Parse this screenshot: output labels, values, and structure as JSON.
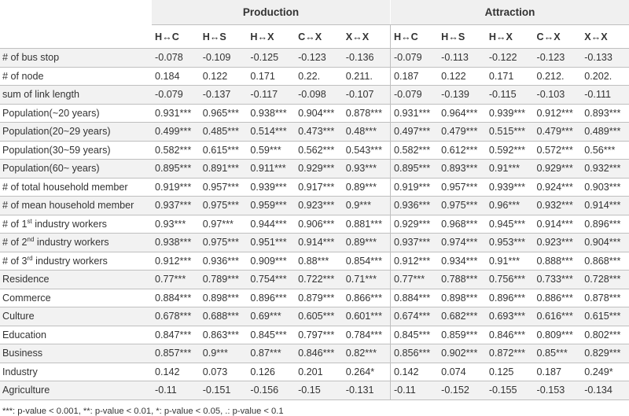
{
  "table": {
    "groups": [
      "Production",
      "Attraction"
    ],
    "sub_headers": [
      "H↔C",
      "H↔S",
      "H↔X",
      "C↔X",
      "X↔X",
      "H↔C",
      "H↔S",
      "H↔X",
      "C↔X",
      "X↔X"
    ],
    "rows": [
      {
        "label": "# of bus stop",
        "values": [
          "-0.078",
          "-0.109",
          "-0.125",
          "-0.123",
          "-0.136",
          "-0.079",
          "-0.113",
          "-0.122",
          "-0.123",
          "-0.133"
        ]
      },
      {
        "label": "# of node",
        "values": [
          "0.184",
          "0.122",
          "0.171",
          "0.22.",
          "0.211.",
          "0.187",
          "0.122",
          "0.171",
          "0.212.",
          "0.202."
        ]
      },
      {
        "label": "sum of link length",
        "values": [
          "-0.079",
          "-0.137",
          "-0.117",
          "-0.098",
          "-0.107",
          "-0.079",
          "-0.139",
          "-0.115",
          "-0.103",
          "-0.111"
        ]
      },
      {
        "label": "Population(~20 years)",
        "values": [
          "0.931***",
          "0.965***",
          "0.938***",
          "0.904***",
          "0.878***",
          "0.931***",
          "0.964***",
          "0.939***",
          "0.912***",
          "0.893***"
        ]
      },
      {
        "label": "Population(20~29 years)",
        "values": [
          "0.499***",
          "0.485***",
          "0.514***",
          "0.473***",
          "0.48***",
          "0.497***",
          "0.479***",
          "0.515***",
          "0.479***",
          "0.489***"
        ]
      },
      {
        "label": "Population(30~59 years)",
        "values": [
          "0.582***",
          "0.615***",
          "0.59***",
          "0.562***",
          "0.543***",
          "0.582***",
          "0.612***",
          "0.592***",
          "0.572***",
          "0.56***"
        ]
      },
      {
        "label": "Population(60~ years)",
        "values": [
          "0.895***",
          "0.891***",
          "0.911***",
          "0.929***",
          "0.93***",
          "0.895***",
          "0.893***",
          "0.91***",
          "0.929***",
          "0.932***"
        ]
      },
      {
        "label": "# of total household member",
        "values": [
          "0.919***",
          "0.957***",
          "0.939***",
          "0.917***",
          "0.89***",
          "0.919***",
          "0.957***",
          "0.939***",
          "0.924***",
          "0.903***"
        ]
      },
      {
        "label": "# of mean household member",
        "values": [
          "0.937***",
          "0.975***",
          "0.959***",
          "0.923***",
          "0.9***",
          "0.936***",
          "0.975***",
          "0.96***",
          "0.932***",
          "0.914***"
        ]
      },
      {
        "label_pre": "# of 1",
        "label_sup": "st",
        "label_post": " industry workers",
        "values": [
          "0.93***",
          "0.97***",
          "0.944***",
          "0.906***",
          "0.881***",
          "0.929***",
          "0.968***",
          "0.945***",
          "0.914***",
          "0.896***"
        ]
      },
      {
        "label_pre": "# of 2",
        "label_sup": "nd",
        "label_post": " industry workers",
        "values": [
          "0.938***",
          "0.975***",
          "0.951***",
          "0.914***",
          "0.89***",
          "0.937***",
          "0.974***",
          "0.953***",
          "0.923***",
          "0.904***"
        ]
      },
      {
        "label_pre": "# of 3",
        "label_sup": "rd",
        "label_post": " industry workers",
        "values": [
          "0.912***",
          "0.936***",
          "0.909***",
          "0.88***",
          "0.854***",
          "0.912***",
          "0.934***",
          "0.91***",
          "0.888***",
          "0.868***"
        ]
      },
      {
        "label": "Residence",
        "values": [
          "0.77***",
          "0.789***",
          "0.754***",
          "0.722***",
          "0.71***",
          "0.77***",
          "0.788***",
          "0.756***",
          "0.733***",
          "0.728***"
        ]
      },
      {
        "label": "Commerce",
        "values": [
          "0.884***",
          "0.898***",
          "0.896***",
          "0.879***",
          "0.866***",
          "0.884***",
          "0.898***",
          "0.896***",
          "0.886***",
          "0.878***"
        ]
      },
      {
        "label": "Culture",
        "values": [
          "0.678***",
          "0.688***",
          "0.69***",
          "0.605***",
          "0.601***",
          "0.674***",
          "0.682***",
          "0.693***",
          "0.616***",
          "0.615***"
        ]
      },
      {
        "label": "Education",
        "values": [
          "0.847***",
          "0.863***",
          "0.845***",
          "0.797***",
          "0.784***",
          "0.845***",
          "0.859***",
          "0.846***",
          "0.809***",
          "0.802***"
        ]
      },
      {
        "label": "Business",
        "values": [
          "0.857***",
          "0.9***",
          "0.87***",
          "0.846***",
          "0.82***",
          "0.856***",
          "0.902***",
          "0.872***",
          "0.85***",
          "0.829***"
        ]
      },
      {
        "label": "Industry",
        "values": [
          "0.142",
          "0.073",
          "0.126",
          "0.201",
          "0.264*",
          "0.142",
          "0.074",
          "0.125",
          "0.187",
          "0.249*"
        ]
      },
      {
        "label": "Agriculture",
        "values": [
          "-0.11",
          "-0.151",
          "-0.156",
          "-0.15",
          "-0.131",
          "-0.11",
          "-0.152",
          "-0.155",
          "-0.153",
          "-0.134"
        ]
      }
    ]
  },
  "footnote": "***: p-value < 0.001, **: p-value < 0.01, *: p-value < 0.05, .: p-value < 0.1"
}
